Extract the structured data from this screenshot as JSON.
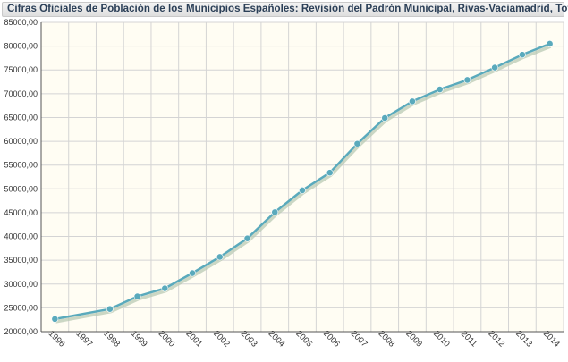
{
  "chart_data": {
    "type": "line",
    "title": "Cifras Oficiales de Población de los Municipios Españoles: Revisión del Padrón Municipal, Rivas-Vaciamadrid, Total",
    "xlabel": "",
    "ylabel": "",
    "x_categories": [
      "1996",
      "1997",
      "1998",
      "1999",
      "2000",
      "2001",
      "2002",
      "2003",
      "2004",
      "2005",
      "2006",
      "2007",
      "2008",
      "2009",
      "2010",
      "2011",
      "2012",
      "2013",
      "2014"
    ],
    "points": [
      {
        "x": "1996",
        "y": 22650
      },
      {
        "x": "1998",
        "y": 24750
      },
      {
        "x": "1999",
        "y": 27400
      },
      {
        "x": "2000",
        "y": 29100
      },
      {
        "x": "2001",
        "y": 32300
      },
      {
        "x": "2002",
        "y": 35700
      },
      {
        "x": "2003",
        "y": 39600
      },
      {
        "x": "2004",
        "y": 45100
      },
      {
        "x": "2005",
        "y": 49700
      },
      {
        "x": "2006",
        "y": 53400
      },
      {
        "x": "2007",
        "y": 59500
      },
      {
        "x": "2008",
        "y": 64900
      },
      {
        "x": "2009",
        "y": 68400
      },
      {
        "x": "2010",
        "y": 70900
      },
      {
        "x": "2011",
        "y": 72900
      },
      {
        "x": "2012",
        "y": 75500
      },
      {
        "x": "2013",
        "y": 78200
      },
      {
        "x": "2014",
        "y": 80500
      }
    ],
    "y_ticks": [
      "20000,00",
      "25000,00",
      "30000,00",
      "35000,00",
      "40000,00",
      "45000,00",
      "50000,00",
      "55000,00",
      "60000,00",
      "65000,00",
      "70000,00",
      "75000,00",
      "80000,00",
      "85000,00"
    ],
    "ylim": [
      20000,
      85000
    ],
    "grid": true,
    "legend": "none",
    "colors": {
      "line": "#5aaabc",
      "marker": "#5aaabc",
      "shadow": "#b9c9b4",
      "plot_background": "#fffdf3",
      "grid": "#d4d4d4"
    }
  }
}
